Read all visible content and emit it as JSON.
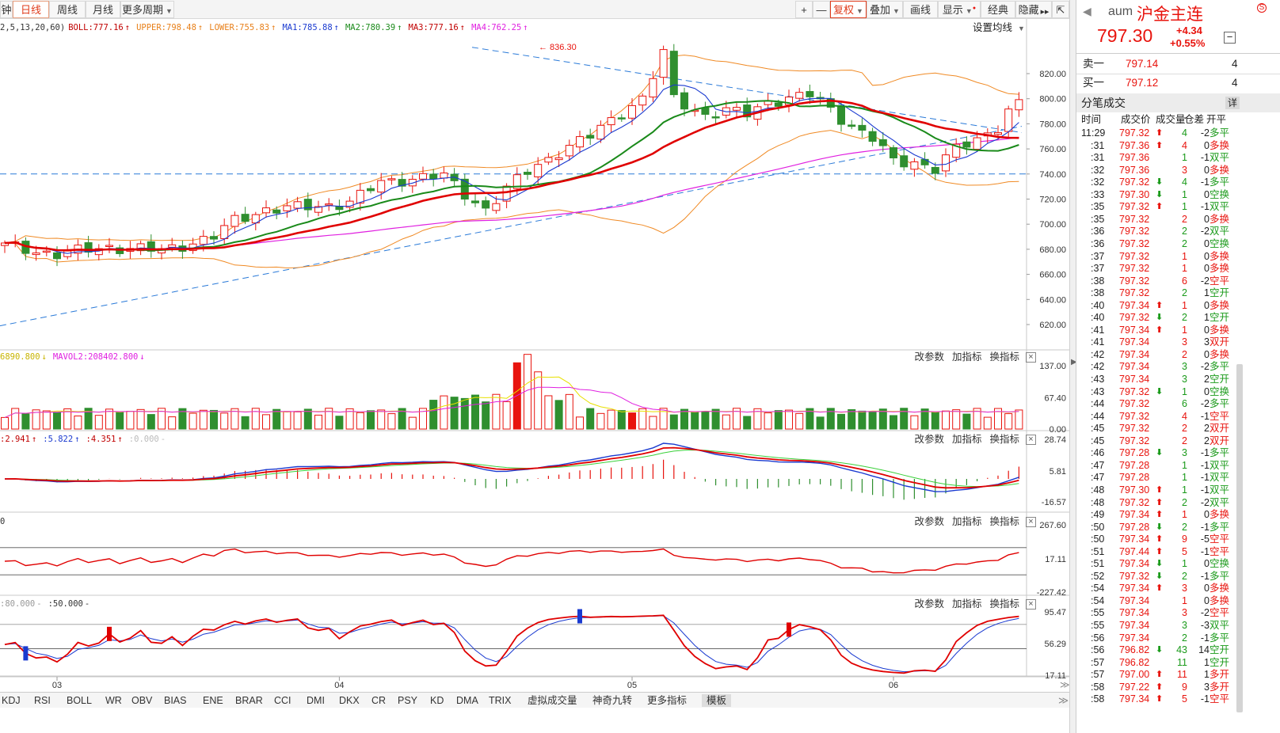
{
  "toolbar": {
    "periods": [
      "钟",
      "日线",
      "周线",
      "月线",
      "更多周期"
    ],
    "active_period": "日线",
    "right_buttons": [
      "+",
      "—",
      "复权",
      "叠加",
      "画线",
      "显示",
      "经典",
      "隐藏",
      "⇱"
    ]
  },
  "main_indicator": {
    "params": "2,5,13,20,60)",
    "items": [
      {
        "label": "BOLL:777.16",
        "color": "#c00000",
        "arrow": "↑"
      },
      {
        "label": "UPPER:798.48",
        "color": "#e8801a",
        "arrow": "↑"
      },
      {
        "label": "LOWER:755.83",
        "color": "#e8801a",
        "arrow": "↑"
      },
      {
        "label": "MA1:785.88",
        "color": "#1a3ad0",
        "arrow": "↑"
      },
      {
        "label": "MA2:780.39",
        "color": "#1a8a1a",
        "arrow": "↑"
      },
      {
        "label": "MA3:777.16",
        "color": "#c00000",
        "arrow": "↑"
      },
      {
        "label": "MA4:762.25",
        "color": "#e020e0",
        "arrow": "↑"
      }
    ],
    "settings_label": "设置均线",
    "peak_label": "836.30",
    "y_ticks": [
      "820.00",
      "800.00",
      "780.00",
      "760.00",
      "740.00",
      "720.00",
      "700.00",
      "680.00",
      "660.00",
      "640.00",
      "620.00"
    ]
  },
  "volume_panel": {
    "items": [
      {
        "label": "6890.800",
        "color": "#c8b400",
        "arrow": "↓"
      },
      {
        "label": "MAVOL2:208402.800",
        "color": "#e020e0",
        "arrow": "↓"
      }
    ],
    "y_ticks": [
      "137.00",
      "67.40",
      "0.00"
    ]
  },
  "macd_panel": {
    "items": [
      {
        "label": ":2.941",
        "color": "#c00000",
        "arrow": "↑"
      },
      {
        "label": ":5.822",
        "color": "#1a3ad0",
        "arrow": "↑"
      },
      {
        "label": ":4.351",
        "color": "#c00000",
        "arrow": "↑"
      },
      {
        "label": ":0.000",
        "color": "#bbbbbb",
        "arrow": "-"
      }
    ],
    "y_ticks": [
      "28.74",
      "5.81",
      "-16.57"
    ]
  },
  "cci_panel": {
    "items": [
      {
        "label": "0",
        "color": "#333333",
        "arrow": ""
      }
    ],
    "y_ticks": [
      "267.60",
      "17.11",
      "-227.42"
    ]
  },
  "kdj_panel": {
    "items": [
      {
        "label": ":80.000",
        "color": "#999999",
        "arrow": "-"
      },
      {
        "label": ":50.000",
        "color": "#333333",
        "arrow": "-"
      }
    ],
    "y_ticks": [
      "95.47",
      "56.29",
      "17.11"
    ]
  },
  "panel_buttons": [
    "改参数",
    "加指标",
    "换指标"
  ],
  "x_labels": [
    "03",
    "04",
    "05",
    "06"
  ],
  "bottom_tabs": [
    "KDJ",
    "RSI",
    "BOLL",
    "WR",
    "OBV",
    "BIAS",
    "ENE",
    "BRAR",
    "CCI",
    "DMI",
    "DKX",
    "CR",
    "PSY",
    "KD",
    "DMA",
    "TRIX",
    "虚拟成交量",
    "神奇九转",
    "更多指标",
    "模板"
  ],
  "selected_bottom_tab": "模板",
  "quote": {
    "code": "aum",
    "name": "沪金主连",
    "price": "797.30",
    "change": "+4.34",
    "change_pct": "+0.55%",
    "sell_label": "卖一",
    "sell_price": "797.14",
    "sell_vol": "4",
    "buy_label": "买一",
    "buy_price": "797.12",
    "buy_vol": "4"
  },
  "trades": {
    "title": "分笔成交",
    "detail_label": "详",
    "columns": [
      "时间",
      "成交价",
      "成交量",
      "仓差",
      "开平"
    ],
    "rows": [
      {
        "t": "11:29",
        "p": "797.32",
        "d": "up",
        "v": "4",
        "c": "-2",
        "k": "多平",
        "kc": "green"
      },
      {
        "t": ":31",
        "p": "797.36",
        "d": "up",
        "v": "4",
        "c": "0",
        "k": "多换",
        "kc": "red"
      },
      {
        "t": ":31",
        "p": "797.36",
        "d": "",
        "v": "1",
        "c": "-1",
        "k": "双平",
        "kc": "green"
      },
      {
        "t": ":32",
        "p": "797.36",
        "d": "",
        "v": "3",
        "c": "0",
        "k": "多换",
        "kc": "red"
      },
      {
        "t": ":32",
        "p": "797.32",
        "d": "dn",
        "v": "4",
        "c": "-1",
        "k": "多平",
        "kc": "green"
      },
      {
        "t": ":33",
        "p": "797.30",
        "d": "dn",
        "v": "1",
        "c": "0",
        "k": "空换",
        "kc": "green"
      },
      {
        "t": ":35",
        "p": "797.32",
        "d": "up",
        "v": "1",
        "c": "-1",
        "k": "双平",
        "kc": "green"
      },
      {
        "t": ":35",
        "p": "797.32",
        "d": "",
        "v": "2",
        "c": "0",
        "k": "多换",
        "kc": "red"
      },
      {
        "t": ":36",
        "p": "797.32",
        "d": "",
        "v": "2",
        "c": "-2",
        "k": "双平",
        "kc": "green"
      },
      {
        "t": ":36",
        "p": "797.32",
        "d": "",
        "v": "2",
        "c": "0",
        "k": "空换",
        "kc": "green"
      },
      {
        "t": ":37",
        "p": "797.32",
        "d": "",
        "v": "1",
        "c": "0",
        "k": "多换",
        "kc": "red"
      },
      {
        "t": ":37",
        "p": "797.32",
        "d": "",
        "v": "1",
        "c": "0",
        "k": "多换",
        "kc": "red"
      },
      {
        "t": ":38",
        "p": "797.32",
        "d": "",
        "v": "6",
        "c": "-2",
        "k": "空平",
        "kc": "red"
      },
      {
        "t": ":38",
        "p": "797.32",
        "d": "",
        "v": "2",
        "c": "1",
        "k": "空开",
        "kc": "green"
      },
      {
        "t": ":40",
        "p": "797.34",
        "d": "up",
        "v": "1",
        "c": "0",
        "k": "多换",
        "kc": "red"
      },
      {
        "t": ":40",
        "p": "797.32",
        "d": "dn",
        "v": "2",
        "c": "1",
        "k": "空开",
        "kc": "green"
      },
      {
        "t": ":41",
        "p": "797.34",
        "d": "up",
        "v": "1",
        "c": "0",
        "k": "多换",
        "kc": "red"
      },
      {
        "t": ":41",
        "p": "797.34",
        "d": "",
        "v": "3",
        "c": "3",
        "k": "双开",
        "kc": "red"
      },
      {
        "t": ":42",
        "p": "797.34",
        "d": "",
        "v": "2",
        "c": "0",
        "k": "多换",
        "kc": "red"
      },
      {
        "t": ":42",
        "p": "797.34",
        "d": "",
        "v": "3",
        "c": "-2",
        "k": "多平",
        "kc": "green"
      },
      {
        "t": ":43",
        "p": "797.34",
        "d": "",
        "v": "3",
        "c": "2",
        "k": "空开",
        "kc": "green"
      },
      {
        "t": ":43",
        "p": "797.32",
        "d": "dn",
        "v": "1",
        "c": "0",
        "k": "空换",
        "kc": "green"
      },
      {
        "t": ":44",
        "p": "797.32",
        "d": "",
        "v": "6",
        "c": "-2",
        "k": "多平",
        "kc": "green"
      },
      {
        "t": ":44",
        "p": "797.32",
        "d": "",
        "v": "4",
        "c": "-1",
        "k": "空平",
        "kc": "red"
      },
      {
        "t": ":45",
        "p": "797.32",
        "d": "",
        "v": "2",
        "c": "2",
        "k": "双开",
        "kc": "red"
      },
      {
        "t": ":45",
        "p": "797.32",
        "d": "",
        "v": "2",
        "c": "2",
        "k": "双开",
        "kc": "red"
      },
      {
        "t": ":46",
        "p": "797.28",
        "d": "dn",
        "v": "3",
        "c": "-1",
        "k": "多平",
        "kc": "green"
      },
      {
        "t": ":47",
        "p": "797.28",
        "d": "",
        "v": "1",
        "c": "-1",
        "k": "双平",
        "kc": "green"
      },
      {
        "t": ":47",
        "p": "797.28",
        "d": "",
        "v": "1",
        "c": "-1",
        "k": "双平",
        "kc": "green"
      },
      {
        "t": ":48",
        "p": "797.30",
        "d": "up",
        "v": "1",
        "c": "-1",
        "k": "双平",
        "kc": "green"
      },
      {
        "t": ":48",
        "p": "797.32",
        "d": "up",
        "v": "2",
        "c": "-2",
        "k": "双平",
        "kc": "green"
      },
      {
        "t": ":49",
        "p": "797.34",
        "d": "up",
        "v": "1",
        "c": "0",
        "k": "多换",
        "kc": "red"
      },
      {
        "t": ":50",
        "p": "797.28",
        "d": "dn",
        "v": "2",
        "c": "-1",
        "k": "多平",
        "kc": "green"
      },
      {
        "t": ":50",
        "p": "797.34",
        "d": "up",
        "v": "9",
        "c": "-5",
        "k": "空平",
        "kc": "red"
      },
      {
        "t": ":51",
        "p": "797.44",
        "d": "up",
        "v": "5",
        "c": "-1",
        "k": "空平",
        "kc": "red"
      },
      {
        "t": ":51",
        "p": "797.34",
        "d": "dn",
        "v": "1",
        "c": "0",
        "k": "空换",
        "kc": "green"
      },
      {
        "t": ":52",
        "p": "797.32",
        "d": "dn",
        "v": "2",
        "c": "-1",
        "k": "多平",
        "kc": "green"
      },
      {
        "t": ":54",
        "p": "797.34",
        "d": "up",
        "v": "3",
        "c": "0",
        "k": "多换",
        "kc": "red"
      },
      {
        "t": ":54",
        "p": "797.34",
        "d": "",
        "v": "1",
        "c": "0",
        "k": "多换",
        "kc": "red"
      },
      {
        "t": ":55",
        "p": "797.34",
        "d": "",
        "v": "3",
        "c": "-2",
        "k": "空平",
        "kc": "red"
      },
      {
        "t": ":55",
        "p": "797.34",
        "d": "",
        "v": "3",
        "c": "-3",
        "k": "双平",
        "kc": "green"
      },
      {
        "t": ":56",
        "p": "797.34",
        "d": "",
        "v": "2",
        "c": "-1",
        "k": "多平",
        "kc": "green"
      },
      {
        "t": ":56",
        "p": "796.82",
        "d": "dn",
        "v": "43",
        "c": "14",
        "k": "空开",
        "kc": "green"
      },
      {
        "t": ":57",
        "p": "796.82",
        "d": "",
        "v": "11",
        "c": "1",
        "k": "空开",
        "kc": "green"
      },
      {
        "t": ":57",
        "p": "797.00",
        "d": "up",
        "v": "11",
        "c": "1",
        "k": "多开",
        "kc": "red"
      },
      {
        "t": ":58",
        "p": "797.22",
        "d": "up",
        "v": "9",
        "c": "3",
        "k": "多开",
        "kc": "red"
      },
      {
        "t": ":58",
        "p": "797.34",
        "d": "up",
        "v": "5",
        "c": "-1",
        "k": "空平",
        "kc": "red"
      }
    ]
  },
  "colors": {
    "up": "#e8140e",
    "down": "#2f8f2f",
    "ma1": "#1a3ad0",
    "ma2": "#1a8a1a",
    "ma3": "#e00000",
    "ma4": "#e020e0",
    "boll": "#f08a24",
    "trend": "#2a7ad8"
  }
}
